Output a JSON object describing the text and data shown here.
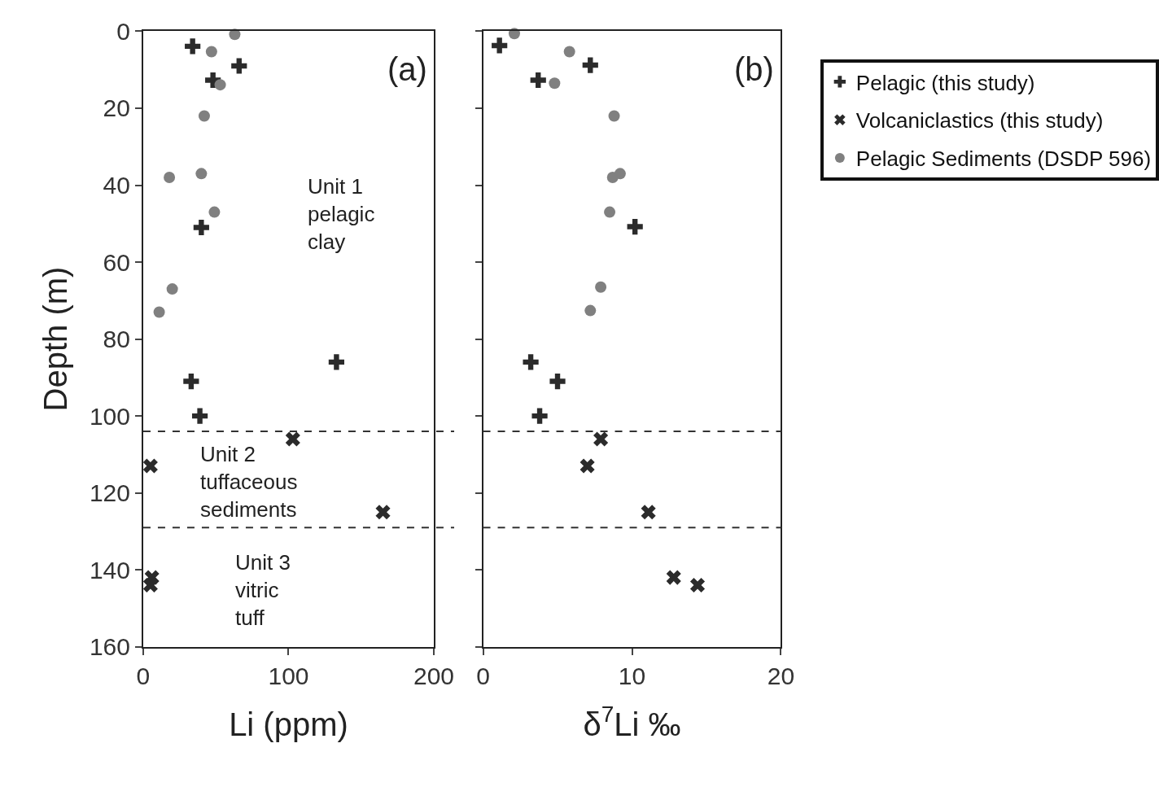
{
  "chart_data": [
    {
      "type": "scatter",
      "xlabel": "Li (ppm)",
      "ylabel": "Depth (m)",
      "xlim": [
        0,
        200
      ],
      "xticks": [
        0,
        100,
        200
      ],
      "ylim": [
        160,
        0
      ],
      "yticks": [
        0,
        20,
        40,
        60,
        80,
        100,
        120,
        140,
        160
      ],
      "legend": "right",
      "series": [
        {
          "name": "Pelagic (this study)",
          "color": "#2b2b2b",
          "marker": "cross",
          "x": [
            34,
            66,
            48,
            40,
            133,
            33,
            39
          ],
          "values": [
            3.9,
            9,
            12.7,
            51,
            86,
            91,
            100
          ]
        },
        {
          "name": "Volcaniclastics (this study)",
          "color": "#2b2b2b",
          "marker": "x",
          "x": [
            103,
            5,
            165,
            6,
            5
          ],
          "values": [
            106,
            113,
            125,
            142,
            144
          ]
        },
        {
          "name": "Pelagic Sediments (DSDP 596)",
          "color": "#808080",
          "marker": "circle",
          "x": [
            63,
            47,
            53,
            42,
            18,
            40,
            49,
            20,
            11
          ],
          "values": [
            0.8,
            5.3,
            13.9,
            22,
            38,
            37,
            47,
            67,
            73
          ]
        }
      ],
      "ref_lines": [
        {
          "axis": "y",
          "value": 104,
          "color": "#333333",
          "line_style": "dashed"
        },
        {
          "axis": "y",
          "value": 129,
          "color": "#333333",
          "line_style": "dashed"
        }
      ],
      "annotations": [
        "(a)",
        "Unit 1 pelagic clay",
        "Unit 2 tuffaceous sediments",
        "Unit 3 vitric tuff"
      ]
    },
    {
      "type": "scatter",
      "xlabel": "δ$^{7}$Li ‰",
      "xlim": [
        0,
        20
      ],
      "xticks": [
        0,
        10,
        20
      ],
      "ylim": [
        160,
        0
      ],
      "yticks": [
        0,
        20,
        40,
        60,
        80,
        100,
        120,
        140,
        160
      ],
      "tick_labels": "x",
      "series": [
        {
          "color": "#2b2b2b",
          "marker": "cross",
          "x": [
            1.1,
            7.2,
            3.7,
            10.2,
            3.2,
            5.0,
            3.8
          ],
          "values": [
            3.7,
            8.8,
            12.7,
            50.8,
            86,
            91,
            100
          ]
        },
        {
          "color": "#2b2b2b",
          "marker": "x",
          "x": [
            7.9,
            7.0,
            11.1,
            12.8,
            14.4
          ],
          "values": [
            106,
            113,
            125,
            142,
            144
          ]
        },
        {
          "color": "#808080",
          "marker": "circle",
          "x": [
            2.1,
            5.8,
            4.8,
            8.8,
            8.7,
            9.2,
            8.5,
            7.9,
            7.2
          ],
          "values": [
            0.6,
            5.3,
            13.5,
            22,
            38,
            37,
            47,
            66.5,
            72.6
          ]
        }
      ],
      "ref_lines": [
        {
          "axis": "y",
          "value": 104,
          "color": "#333333",
          "line_style": "dashed"
        },
        {
          "axis": "y",
          "value": 129,
          "color": "#333333",
          "line_style": "dashed"
        }
      ],
      "annotations": [
        "(b)"
      ]
    }
  ]
}
